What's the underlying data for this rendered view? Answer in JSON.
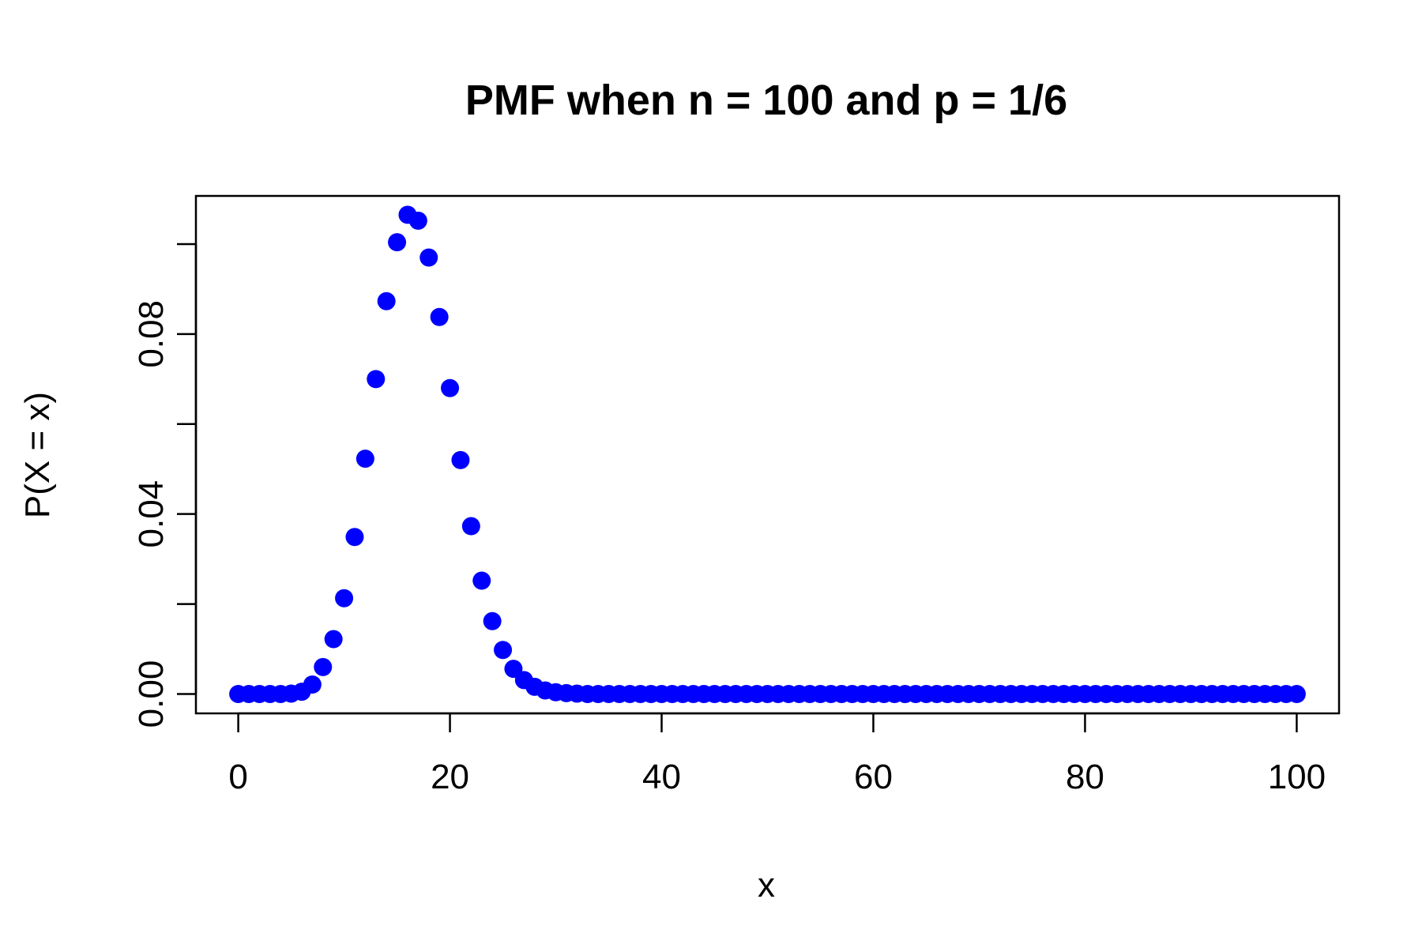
{
  "chart_data": {
    "type": "scatter",
    "title": "PMF when n = 100 and p = 1/6",
    "xlabel": "x",
    "ylabel": "P(X = x)",
    "xlim": [
      -4,
      104
    ],
    "ylim": [
      -0.0043,
      0.1107
    ],
    "xticks": [
      0,
      20,
      40,
      60,
      80,
      100
    ],
    "xtick_labels": [
      "0",
      "20",
      "40",
      "60",
      "80",
      "100"
    ],
    "yticks": [
      0.0,
      0.02,
      0.04,
      0.06,
      0.08,
      0.1
    ],
    "ytick_labels": [
      "0.00",
      "",
      "0.04",
      "",
      "0.08",
      ""
    ],
    "grid": false,
    "legend": "none",
    "marker_color": "#0000ff",
    "series": [
      {
        "x": [
          0,
          1,
          2,
          3,
          4,
          5,
          6,
          7,
          8,
          9,
          10,
          11,
          12,
          13,
          14,
          15,
          16,
          17,
          18,
          19,
          20,
          21,
          22,
          23,
          24,
          25,
          26,
          27,
          28,
          29,
          30,
          31,
          32,
          33,
          34,
          35,
          36,
          37,
          38,
          39,
          40,
          41,
          42,
          43,
          44,
          45,
          46,
          47,
          48,
          49,
          50,
          51,
          52,
          53,
          54,
          55,
          56,
          57,
          58,
          59,
          60,
          61,
          62,
          63,
          64,
          65,
          66,
          67,
          68,
          69,
          70,
          71,
          72,
          73,
          74,
          75,
          76,
          77,
          78,
          79,
          80,
          81,
          82,
          83,
          84,
          85,
          86,
          87,
          88,
          89,
          90,
          91,
          92,
          93,
          94,
          95,
          96,
          97,
          98,
          99,
          100
        ],
        "values": [
          0.0,
          0.0,
          0.0,
          0.0,
          0.0,
          0.0001,
          0.0005,
          0.0021,
          0.006,
          0.0122,
          0.0213,
          0.0349,
          0.0523,
          0.07,
          0.0873,
          0.1004,
          0.1065,
          0.1052,
          0.097,
          0.0838,
          0.068,
          0.052,
          0.0373,
          0.0252,
          0.0162,
          0.0098,
          0.0056,
          0.0031,
          0.0016,
          0.0008,
          0.0004,
          0.0002,
          0.0001,
          0.0,
          0.0,
          0.0,
          0.0,
          0.0,
          0.0,
          0.0,
          0.0,
          0.0,
          0.0,
          0.0,
          0.0,
          0.0,
          0.0,
          0.0,
          0.0,
          0.0,
          0.0,
          0.0,
          0.0,
          0.0,
          0.0,
          0.0,
          0.0,
          0.0,
          0.0,
          0.0,
          0.0,
          0.0,
          0.0,
          0.0,
          0.0,
          0.0,
          0.0,
          0.0,
          0.0,
          0.0,
          0.0,
          0.0,
          0.0,
          0.0,
          0.0,
          0.0,
          0.0,
          0.0,
          0.0,
          0.0,
          0.0,
          0.0,
          0.0,
          0.0,
          0.0,
          0.0,
          0.0,
          0.0,
          0.0,
          0.0,
          0.0,
          0.0,
          0.0,
          0.0,
          0.0,
          0.0,
          0.0,
          0.0,
          0.0,
          0.0,
          0.0
        ]
      }
    ]
  }
}
